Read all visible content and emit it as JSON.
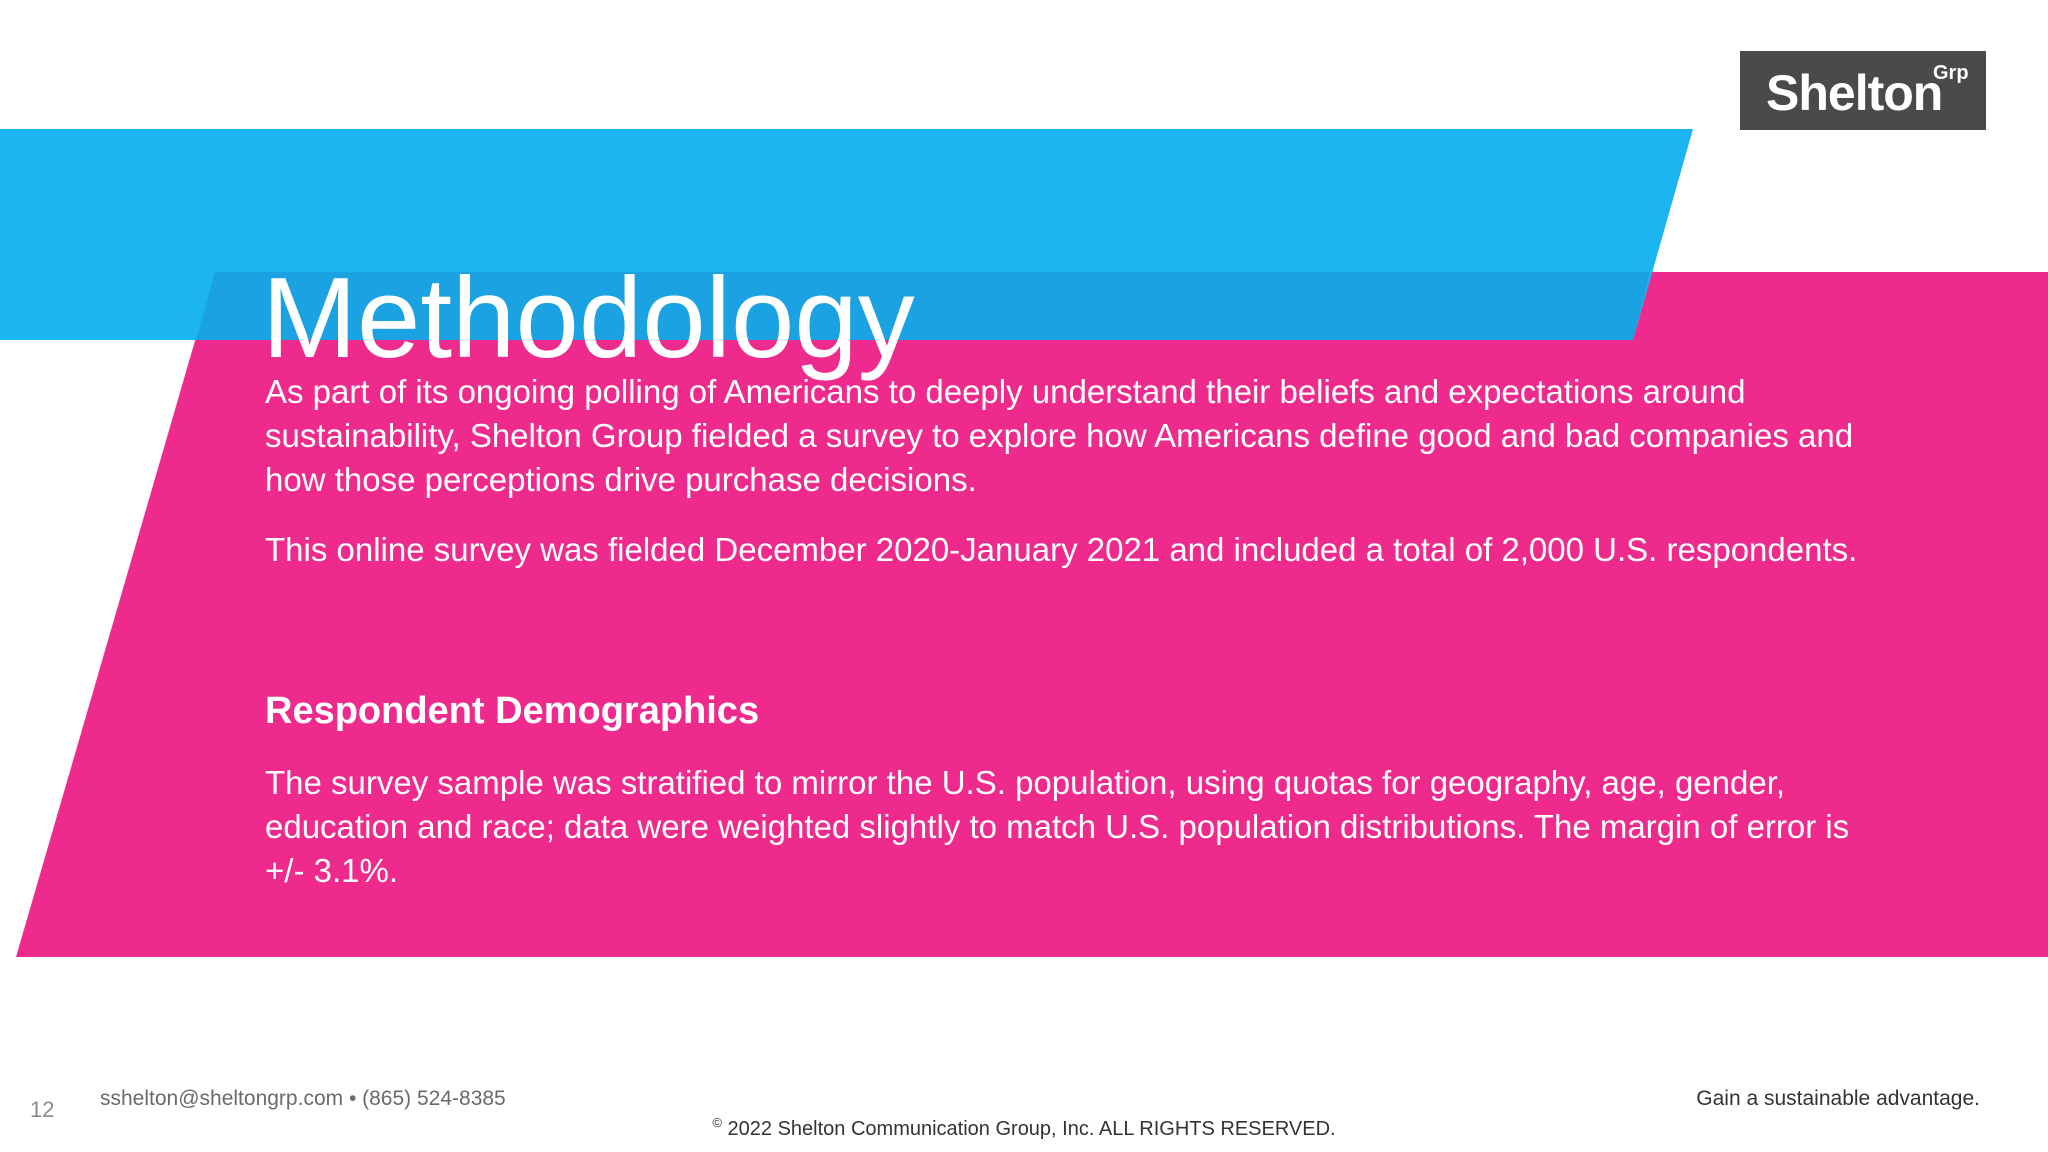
{
  "brand": {
    "logo_main": "Shelton",
    "logo_sup": "Grp",
    "colors": {
      "cyan": "#1bb6f1",
      "magenta": "#ee2a8c",
      "logo_bg": "#4a4a4a"
    }
  },
  "slide": {
    "title": "Methodology",
    "paragraph_1": "As part of its ongoing polling of Americans to deeply understand their beliefs and expectations around sustainability, Shelton Group fielded a survey to explore how Americans define good and bad companies and how those perceptions drive purchase decisions.",
    "paragraph_2": "This online survey was fielded December 2020-January 2021 and included a total of 2,000 U.S. respondents.",
    "subheading": "Respondent Demographics",
    "paragraph_3": "The survey sample was stratified to mirror the U.S. population, using quotas for geography, age, gender, education and race; data were weighted slightly to match U.S. population distributions. The margin of error is +/- 3.1%."
  },
  "footer": {
    "page_number": "12",
    "contact": "sshelton@sheltongrp.com • (865) 524-8385",
    "tagline": "Gain a sustainable advantage.",
    "copyright_symbol": "©",
    "copyright": "2022 Shelton Communication Group, Inc.  ALL RIGHTS RESERVED."
  }
}
